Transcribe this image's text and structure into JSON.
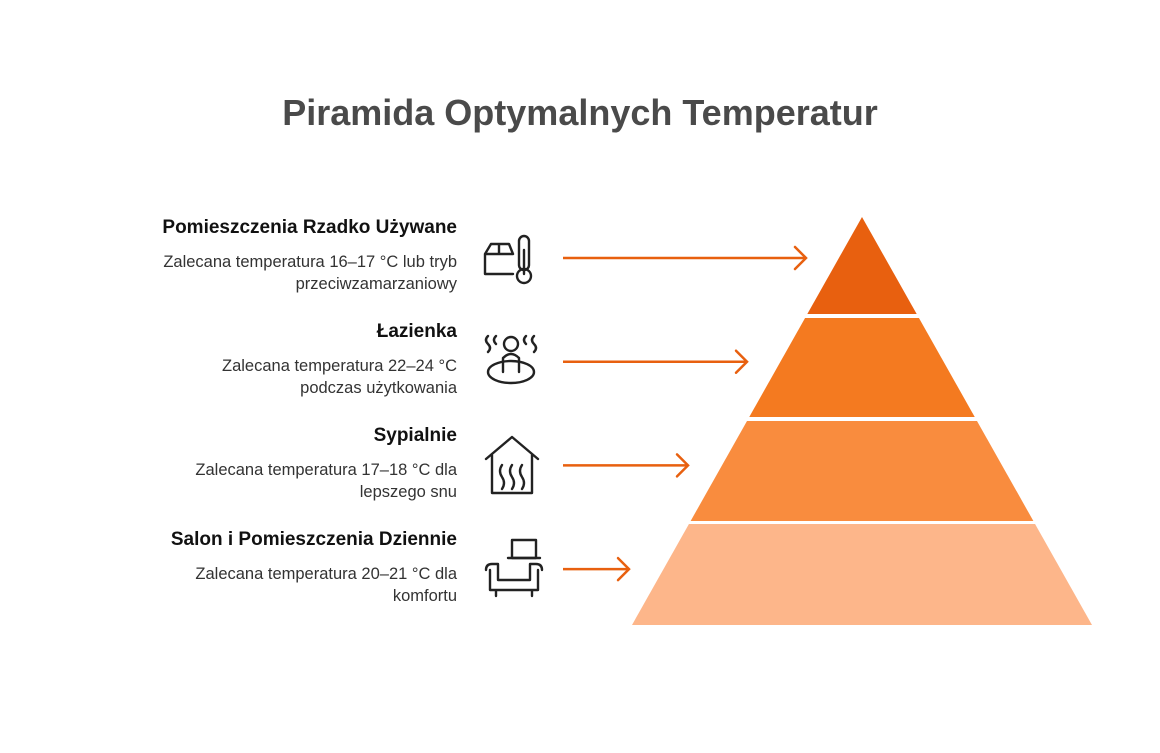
{
  "title": "Piramida Optymalnych Temperatur",
  "levels": [
    {
      "title": "Pomieszczenia Rzadko Używane",
      "description": [
        "Zalecana temperatura 16–17 °C lub tryb",
        "przeciwzamarzaniowy"
      ]
    },
    {
      "title": "Łazienka",
      "description": [
        "Zalecana temperatura 22–24 °C",
        "podczas użytkowania"
      ]
    },
    {
      "title": "Sypialnie",
      "description": [
        "Zalecana temperatura 17–18 °C dla",
        "lepszego snu"
      ]
    },
    {
      "title": "Salon i Pomieszczenia Dziennie",
      "description": [
        "Zalecana temperatura 20–21 °C dla",
        "komfortu"
      ]
    }
  ]
}
